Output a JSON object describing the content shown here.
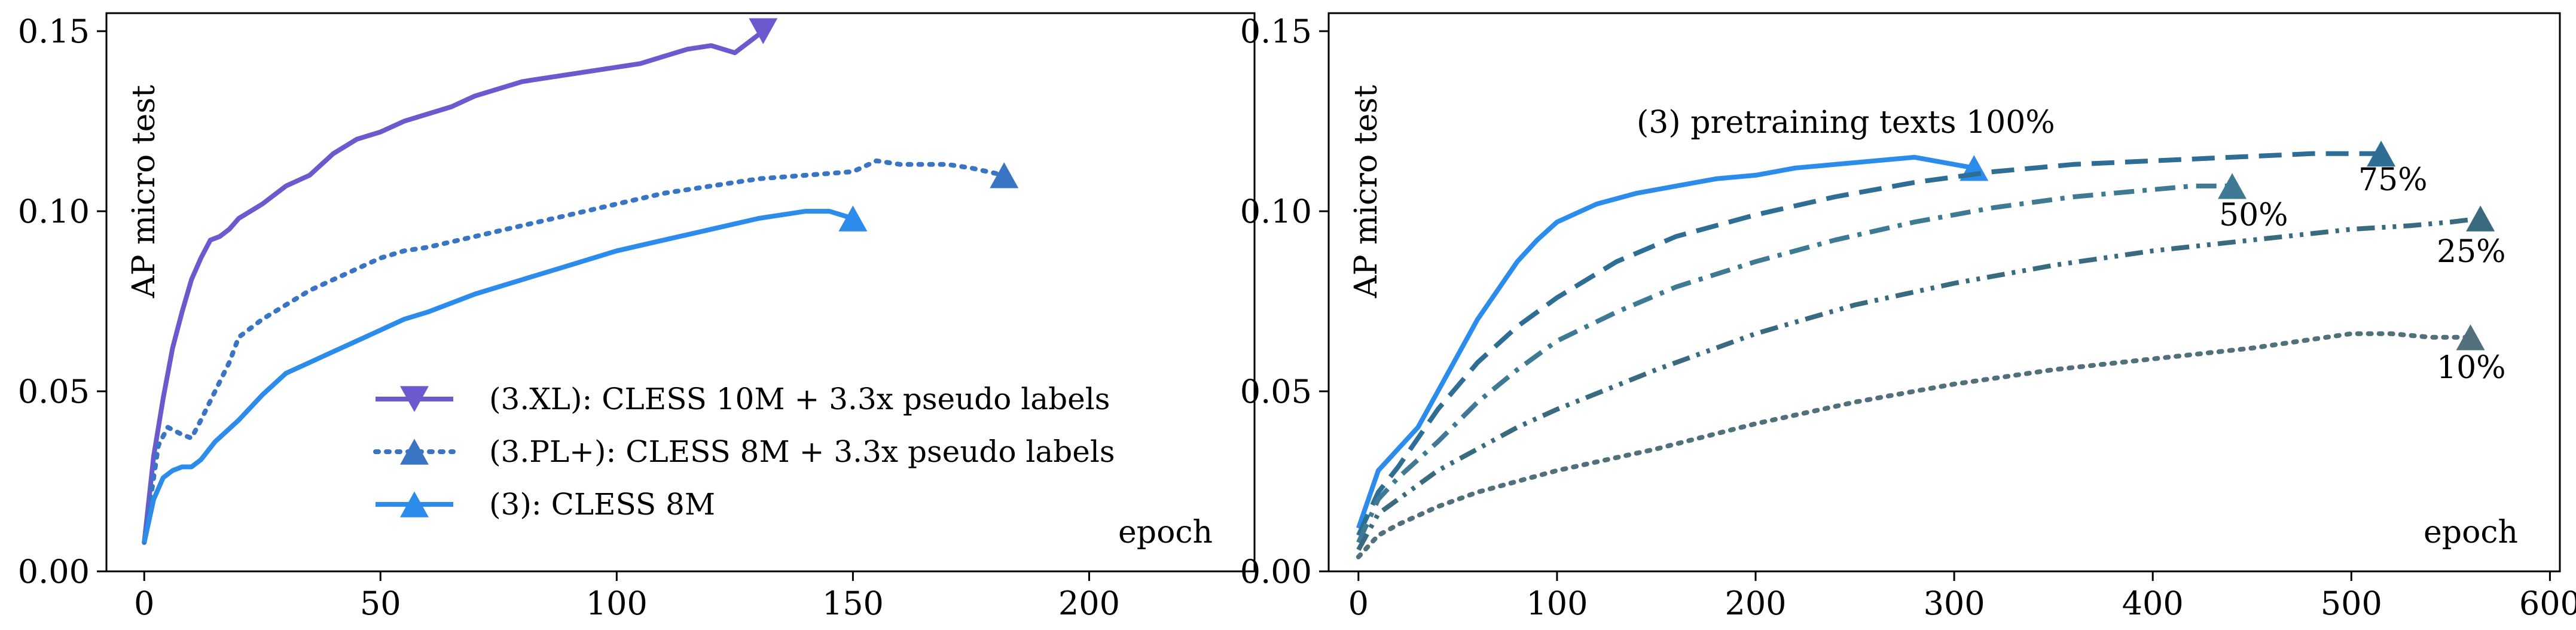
{
  "chart_data": [
    {
      "type": "line",
      "xlabel": "epoch",
      "ylabel": "AP micro test",
      "xlim": [
        -8,
        235
      ],
      "ylim": [
        0,
        0.155
      ],
      "xticks": [
        0,
        50,
        100,
        150,
        200
      ],
      "yticks": [
        0.0,
        0.05,
        0.1,
        0.15
      ],
      "xtick_labels": [
        "0",
        "50",
        "100",
        "150",
        "200"
      ],
      "ytick_labels": [
        "0.00",
        "0.05",
        "0.10",
        "0.15"
      ],
      "legend_position": "lower-center",
      "series": [
        {
          "name": "(3.XL): CLESS 10M + 3.3x pseudo labels",
          "color": "#6a5acd",
          "style": "solid",
          "marker": "triangle-down",
          "x": [
            0,
            2,
            4,
            6,
            8,
            10,
            12,
            14,
            16,
            18,
            20,
            25,
            30,
            35,
            40,
            45,
            50,
            55,
            60,
            65,
            70,
            75,
            80,
            85,
            90,
            95,
            100,
            105,
            110,
            115,
            120,
            125,
            128,
            131
          ],
          "y": [
            0.008,
            0.032,
            0.048,
            0.062,
            0.072,
            0.081,
            0.087,
            0.092,
            0.093,
            0.095,
            0.098,
            0.102,
            0.107,
            0.11,
            0.116,
            0.12,
            0.122,
            0.125,
            0.127,
            0.129,
            0.132,
            0.134,
            0.136,
            0.137,
            0.138,
            0.139,
            0.14,
            0.141,
            0.143,
            0.145,
            0.146,
            0.144,
            0.147,
            0.15
          ]
        },
        {
          "name": "(3.PL+): CLESS 8M + 3.3x pseudo labels",
          "color": "#3a75c4",
          "style": "dotted",
          "marker": "triangle-up",
          "x": [
            0,
            3,
            5,
            8,
            10,
            12,
            15,
            18,
            20,
            25,
            30,
            35,
            40,
            45,
            50,
            55,
            60,
            70,
            80,
            90,
            100,
            110,
            120,
            130,
            140,
            150,
            155,
            160,
            170,
            175,
            182
          ],
          "y": [
            0.008,
            0.035,
            0.04,
            0.038,
            0.037,
            0.042,
            0.05,
            0.058,
            0.065,
            0.07,
            0.074,
            0.078,
            0.081,
            0.084,
            0.087,
            0.089,
            0.09,
            0.093,
            0.096,
            0.099,
            0.102,
            0.105,
            0.107,
            0.109,
            0.11,
            0.111,
            0.114,
            0.113,
            0.113,
            0.112,
            0.11
          ]
        },
        {
          "name": "(3): CLESS 8M",
          "color": "#2b8ceb",
          "style": "solid",
          "marker": "triangle-up",
          "x": [
            0,
            2,
            4,
            6,
            8,
            10,
            12,
            15,
            20,
            25,
            30,
            35,
            40,
            45,
            50,
            55,
            60,
            70,
            80,
            90,
            100,
            110,
            120,
            130,
            135,
            140,
            145,
            150
          ],
          "y": [
            0.008,
            0.02,
            0.026,
            0.028,
            0.029,
            0.029,
            0.031,
            0.036,
            0.042,
            0.049,
            0.055,
            0.058,
            0.061,
            0.064,
            0.067,
            0.07,
            0.072,
            0.077,
            0.081,
            0.085,
            0.089,
            0.092,
            0.095,
            0.098,
            0.099,
            0.1,
            0.1,
            0.098
          ]
        }
      ]
    },
    {
      "type": "line",
      "xlabel": "epoch",
      "ylabel": "AP micro test",
      "xlim": [
        -15,
        605
      ],
      "ylim": [
        0,
        0.155
      ],
      "xticks": [
        0,
        100,
        200,
        300,
        400,
        500,
        600
      ],
      "yticks": [
        0.0,
        0.05,
        0.1,
        0.15
      ],
      "xtick_labels": [
        "0",
        "100",
        "200",
        "300",
        "400",
        "500",
        "600"
      ],
      "ytick_labels": [
        "0.00",
        "0.05",
        "0.10",
        "0.15"
      ],
      "series": [
        {
          "name": "(3) pretraining texts 100%",
          "color": "#2b8ceb",
          "style": "solid",
          "marker": "triangle-up",
          "x": [
            0,
            10,
            20,
            30,
            40,
            50,
            60,
            70,
            80,
            90,
            100,
            120,
            140,
            160,
            180,
            200,
            220,
            240,
            260,
            280,
            300,
            310
          ],
          "y": [
            0.012,
            0.028,
            0.034,
            0.04,
            0.05,
            0.06,
            0.07,
            0.078,
            0.086,
            0.092,
            0.097,
            0.102,
            0.105,
            0.107,
            0.109,
            0.11,
            0.112,
            0.113,
            0.114,
            0.115,
            0.113,
            0.112
          ]
        },
        {
          "name": "75%",
          "color": "#2f6e94",
          "style": "dashed",
          "marker": "triangle-up",
          "x": [
            0,
            10,
            20,
            40,
            60,
            80,
            100,
            130,
            160,
            200,
            240,
            280,
            320,
            360,
            400,
            440,
            480,
            500,
            515
          ],
          "y": [
            0.01,
            0.022,
            0.029,
            0.045,
            0.058,
            0.068,
            0.076,
            0.086,
            0.093,
            0.099,
            0.104,
            0.108,
            0.111,
            0.113,
            0.114,
            0.115,
            0.116,
            0.116,
            0.116
          ]
        },
        {
          "name": "50%",
          "color": "#3f7a94",
          "style": "dashdot",
          "marker": "triangle-up",
          "x": [
            0,
            10,
            20,
            40,
            60,
            80,
            100,
            130,
            160,
            200,
            240,
            280,
            320,
            360,
            400,
            420,
            440
          ],
          "y": [
            0.008,
            0.02,
            0.026,
            0.036,
            0.047,
            0.056,
            0.064,
            0.072,
            0.079,
            0.086,
            0.092,
            0.097,
            0.101,
            0.104,
            0.106,
            0.107,
            0.107
          ]
        },
        {
          "name": "25%",
          "color": "#3a6a80",
          "style": "dashdotdot",
          "marker": "triangle-up",
          "x": [
            0,
            10,
            20,
            40,
            60,
            80,
            100,
            150,
            200,
            250,
            300,
            350,
            400,
            450,
            500,
            530,
            550,
            565
          ],
          "y": [
            0.006,
            0.016,
            0.02,
            0.028,
            0.034,
            0.04,
            0.045,
            0.056,
            0.066,
            0.074,
            0.08,
            0.085,
            0.089,
            0.092,
            0.095,
            0.096,
            0.097,
            0.098
          ]
        },
        {
          "name": "10%",
          "color": "#52707c",
          "style": "dotted",
          "marker": "triangle-up",
          "x": [
            0,
            10,
            20,
            40,
            60,
            80,
            100,
            150,
            200,
            250,
            300,
            350,
            400,
            450,
            500,
            520,
            540,
            560
          ],
          "y": [
            0.004,
            0.01,
            0.013,
            0.018,
            0.022,
            0.025,
            0.028,
            0.034,
            0.041,
            0.047,
            0.052,
            0.056,
            0.059,
            0.062,
            0.066,
            0.066,
            0.065,
            0.065
          ]
        }
      ]
    }
  ]
}
